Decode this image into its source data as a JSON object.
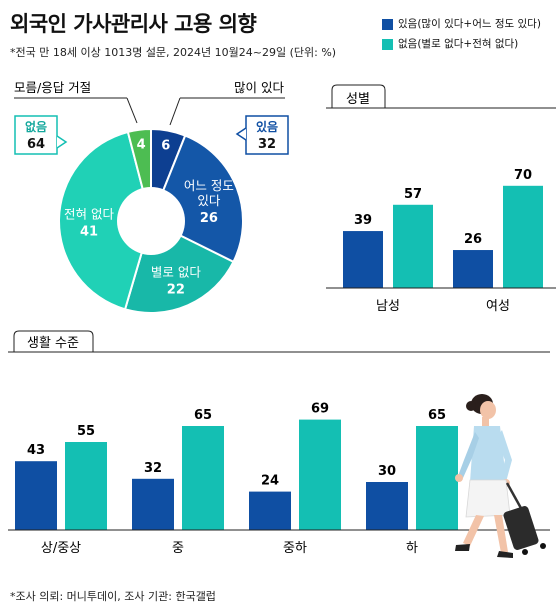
{
  "title": "외국인 가사관리사 고용 의향",
  "subtitle": "*전국 만 18세 이상 1013명 설문, 2024년 10월24~29일 (단위: %)",
  "source": "*조사 의뢰: 머니투데이, 조사 기관: 한국갤럽",
  "colors": {
    "yes": "#0f4fa3",
    "no": "#14bfb3",
    "pie_yes_dark": "#0d3f91",
    "pie_yes": "#1457a8",
    "pie_no_dark": "#18b8a8",
    "pie_no": "#20d1b6",
    "pie_unknown": "#4dbd52"
  },
  "legend": [
    {
      "label": "있음(많이 있다+어느 정도 있다)",
      "color": "#0f4fa3"
    },
    {
      "label": "없음(별로 없다+전혀 없다)",
      "color": "#14bfb3"
    }
  ],
  "chart_data": [
    {
      "type": "pie",
      "slices": [
        {
          "label": "많이 있다",
          "value": 6
        },
        {
          "label": "어느 정도 있다",
          "value": 26
        },
        {
          "label": "별로 없다",
          "value": 22
        },
        {
          "label": "전혀 없다",
          "value": 41
        },
        {
          "label": "모름/응답 거절",
          "value": 4
        }
      ],
      "callouts": [
        {
          "label": "있음",
          "value": 32
        },
        {
          "label": "없음",
          "value": 64
        }
      ]
    },
    {
      "type": "bar",
      "title": "성별",
      "categories": [
        "남성",
        "여성"
      ],
      "series": [
        {
          "name": "있음",
          "values": [
            39,
            26
          ]
        },
        {
          "name": "없음",
          "values": [
            57,
            70
          ]
        }
      ]
    },
    {
      "type": "bar",
      "title": "생활 수준",
      "categories": [
        "상/중상",
        "중",
        "중하",
        "하"
      ],
      "series": [
        {
          "name": "있음",
          "values": [
            43,
            32,
            24,
            30
          ]
        },
        {
          "name": "없음",
          "values": [
            55,
            65,
            69,
            65
          ]
        }
      ]
    }
  ]
}
